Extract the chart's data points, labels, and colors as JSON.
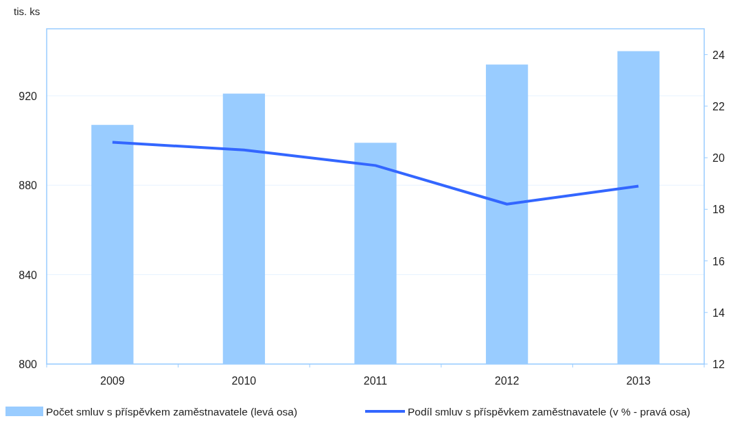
{
  "chart_data": {
    "type": "bar",
    "ylabel": "tis. ks",
    "categories": [
      "2009",
      "2010",
      "2011",
      "2012",
      "2013"
    ],
    "series": [
      {
        "name": "Počet smluv s příspěvkem zaměstnavatele (levá osa)",
        "color": "#99ccff",
        "values": [
          907,
          921,
          899,
          934,
          940
        ]
      },
      {
        "name": "Podíl smluv s příspěvkem zaměstnavatele (v % - pravá osa)",
        "type": "line",
        "axis": "y2",
        "color": "#3366ff",
        "values": [
          20.6,
          20.3,
          19.7,
          18.2,
          18.9
        ]
      }
    ],
    "ylim": [
      800,
      950
    ],
    "yticks": [
      800,
      840,
      880,
      920
    ],
    "y2lim": [
      12,
      25
    ],
    "y2ticks": [
      12,
      14,
      16,
      18,
      20,
      22,
      24
    ],
    "grid": "y",
    "legend": "bottom",
    "marker": "none"
  }
}
